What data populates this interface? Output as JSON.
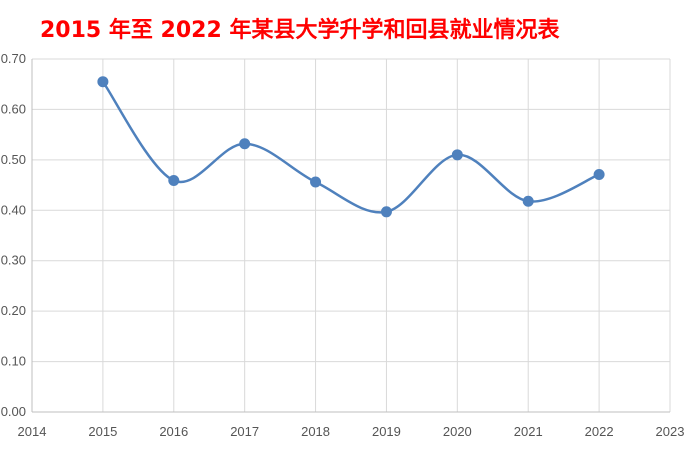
{
  "chart_data": {
    "type": "scatter",
    "title": "2015 年至 2022 年某县大学升学和回县就业情况表",
    "xlabel": "",
    "ylabel": "",
    "xlim": [
      2014,
      2023
    ],
    "ylim": [
      0.0,
      0.7
    ],
    "grid": true,
    "smooth_line": true,
    "x_ticks": [
      "2014",
      "2015",
      "2016",
      "2017",
      "2018",
      "2019",
      "2020",
      "2021",
      "2022",
      "2023"
    ],
    "y_ticks": [
      "0.00",
      "0.10",
      "0.20",
      "0.30",
      "0.40",
      "0.50",
      "0.60",
      "0.70"
    ],
    "series": [
      {
        "x": [
          2015,
          2016,
          2017,
          2018,
          2019,
          2020,
          2021,
          2022
        ],
        "values": [
          0.655,
          0.459,
          0.532,
          0.456,
          0.397,
          0.51,
          0.418,
          0.471
        ],
        "color": "#4f81bd"
      }
    ]
  }
}
